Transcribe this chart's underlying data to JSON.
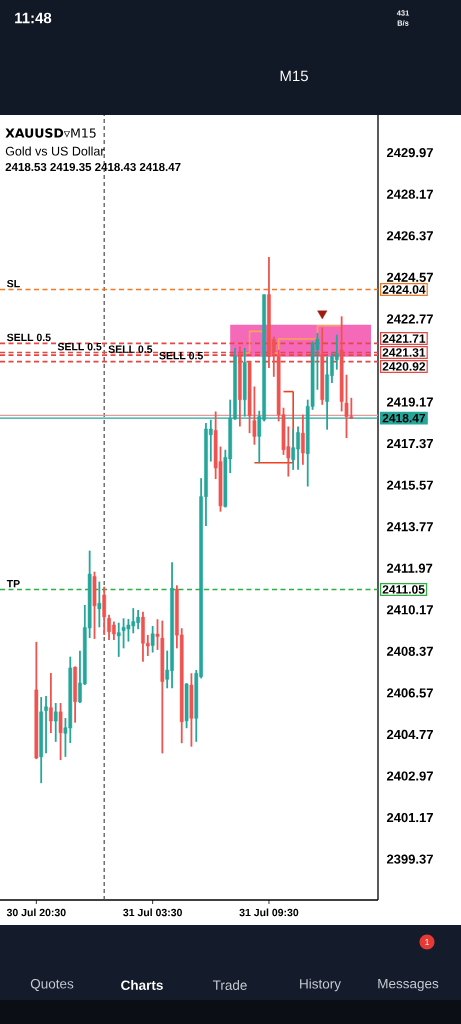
{
  "chart_data": {
    "type": "candlestick",
    "title": "**XAUUSD**▿M15",
    "subtitle": "Gold vs US Dollar",
    "annotations": [
      "2418.53 2419.35 2418.43 2418.47",
      {
        "text": "SL",
        "y": 2424.04
      },
      {
        "text": "SELL 0.5",
        "y": 2421.71
      },
      {
        "text": "SELL 0.5",
        "y": 2421.31
      },
      {
        "text": "SELL 0.5",
        "y": 2421.2
      },
      {
        "text": "SELL 0.5",
        "y": 2420.92
      },
      {
        "text": "TP",
        "y": 2411.05
      },
      "M15",
      "Quotes",
      "Charts",
      "Trade",
      "History",
      "Messages",
      "1",
      "11:48",
      "431",
      "B/s"
    ],
    "categories": [
      "30 Jul 20:30",
      null,
      null,
      null,
      null,
      null,
      null,
      null,
      null,
      null,
      null,
      null,
      null,
      null,
      null,
      null,
      null,
      null,
      null,
      null,
      null,
      null,
      null,
      null,
      "31 Jul 03:30",
      null,
      null,
      null,
      null,
      null,
      null,
      null,
      null,
      null,
      null,
      null,
      null,
      null,
      null,
      null,
      null,
      null,
      null,
      null,
      null,
      null,
      null,
      null,
      "31 Jul 09:30",
      null,
      null,
      null,
      null,
      null,
      null,
      null,
      null,
      null,
      null,
      null,
      null,
      null,
      null,
      null,
      null,
      null,
      null,
      null,
      null,
      null
    ],
    "ohlc": [
      [
        2406.7,
        2408.78,
        2403.7,
        2403.75
      ],
      [
        2403.8,
        2406.39,
        2402.66,
        2405.75
      ],
      [
        2405.8,
        2406.44,
        2403.96,
        2405.97
      ],
      [
        2405.93,
        2407.43,
        2404.83,
        2405.35
      ],
      [
        2405.35,
        2406.13,
        2404.45,
        2405.75
      ],
      [
        2405.75,
        2406.13,
        2403.66,
        2404.84
      ],
      [
        2404.82,
        2405.48,
        2403.8,
        2405.06
      ],
      [
        2405.05,
        2408.14,
        2404.4,
        2407.65
      ],
      [
        2407.69,
        2407.71,
        2405.28,
        2406.19
      ],
      [
        2406.18,
        2408.4,
        2406.13,
        2407.0
      ],
      [
        2406.96,
        2410.38,
        2406.91,
        2409.4
      ],
      [
        2409.38,
        2412.73,
        2408.95,
        2411.72
      ],
      [
        2411.61,
        2411.82,
        2408.91,
        2410.34
      ],
      [
        2410.21,
        2411.39,
        2409.41,
        2410.45
      ],
      [
        2410.81,
        2411.17,
        2409.08,
        2409.86
      ],
      [
        2409.8,
        2409.95,
        2408.86,
        2409.22
      ],
      [
        2409.51,
        2409.66,
        2408.86,
        2409.12
      ],
      [
        2409.04,
        2409.61,
        2408.13,
        2409.18
      ],
      [
        2409.27,
        2409.8,
        2408.5,
        2409.41
      ],
      [
        2409.34,
        2409.77,
        2408.79,
        2409.51
      ],
      [
        2409.47,
        2410.24,
        2409.15,
        2409.66
      ],
      [
        2409.61,
        2410.16,
        2409.33,
        2409.85
      ],
      [
        2409.85,
        2410.09,
        2407.92,
        2408.72
      ],
      [
        2408.72,
        2409.08,
        2408.17,
        2408.6
      ],
      [
        2408.62,
        2409.47,
        2408.32,
        2409.13
      ],
      [
        2409.12,
        2409.76,
        2408.43,
        2409.01
      ],
      [
        2408.94,
        2409.7,
        2403.95,
        2407.06
      ],
      [
        2407.16,
        2408.4,
        2406.77,
        2407.56
      ],
      [
        2407.53,
        2412.23,
        2406.77,
        2411.1
      ],
      [
        2411.07,
        2411.23,
        2408.5,
        2409.07
      ],
      [
        2409.08,
        2409.37,
        2404.39,
        2405.32
      ],
      [
        2405.36,
        2406.99,
        2405.04,
        2406.96
      ],
      [
        2406.91,
        2407.42,
        2404.24,
        2405.47
      ],
      [
        2405.47,
        2407.56,
        2404.45,
        2407.42
      ],
      [
        2407.27,
        2415.87,
        2407.2,
        2415.07
      ],
      [
        2415.07,
        2418.26,
        2413.8,
        2418.0
      ],
      [
        2417.75,
        2418.4,
        2416.59,
        2418.0
      ],
      [
        2417.94,
        2418.76,
        2415.83,
        2416.31
      ],
      [
        2416.59,
        2417.24,
        2414.42,
        2414.67
      ],
      [
        2414.64,
        2417.1,
        2414.6,
        2416.77
      ],
      [
        2416.7,
        2419.27,
        2416.09,
        2418.47
      ],
      [
        2418.43,
        2421.51,
        2418.4,
        2421.17
      ],
      [
        2421.17,
        2421.58,
        2418.11,
        2419.27
      ],
      [
        2419.27,
        2421.51,
        2418.54,
        2420.88
      ],
      [
        2420.88,
        2420.93,
        2417.82,
        2418.57
      ],
      [
        2418.36,
        2419.84,
        2417.32,
        2417.68
      ],
      [
        2417.68,
        2418.79,
        2416.52,
        2418.54
      ],
      [
        2418.4,
        2423.82,
        2418.33,
        2423.82
      ],
      [
        2423.82,
        2425.45,
        2420.64,
        2421.14
      ],
      [
        2421.87,
        2422.0,
        2420.26,
        2421.35
      ],
      [
        2421.14,
        2421.43,
        2418.33,
        2418.62
      ],
      [
        2418.62,
        2418.92,
        2416.88,
        2417.1
      ],
      [
        2417.24,
        2418.11,
        2415.94,
        2416.74
      ],
      [
        2416.67,
        2418.0,
        2416.23,
        2417.19
      ],
      [
        2417.13,
        2418.11,
        2416.23,
        2417.85
      ],
      [
        2417.82,
        2418.62,
        2416.45,
        2416.96
      ],
      [
        2416.93,
        2419.27,
        2415.51,
        2418.98
      ],
      [
        2418.98,
        2421.79,
        2418.83,
        2421.72
      ],
      [
        2421.43,
        2422.16,
        2419.7,
        2421.9
      ],
      [
        2421.22,
        2422.39,
        2419.05,
        2419.27
      ],
      [
        2419.19,
        2421.14,
        2417.97,
        2420.35
      ],
      [
        2420.31,
        2421.29,
        2419.99,
        2421.14
      ],
      [
        2421.0,
        2422.08,
        2420.57,
        2421.26
      ],
      [
        2421.43,
        2422.88,
        2418.76,
        2419.19
      ],
      [
        2419.12,
        2420.35,
        2417.61,
        2418.54
      ],
      [
        2418.53,
        2419.35,
        2418.43,
        2418.47
      ],
      null,
      null,
      null,
      null
    ],
    "colors": [
      "#ef5350",
      "#26a69a",
      "#26a69a",
      "#ef5350",
      "#26a69a",
      "#ef5350",
      "#26a69a",
      "#26a69a",
      "#ef5350",
      "#26a69a",
      "#26a69a",
      "#26a69a",
      "#ef5350",
      "#26a69a",
      "#ef5350",
      "#ef5350",
      "#ef5350",
      "#26a69a",
      "#26a69a",
      "#26a69a",
      "#26a69a",
      "#26a69a",
      "#ef5350",
      "#ef5350",
      "#26a69a",
      "#ef5350",
      "#ef5350",
      "#26a69a",
      "#26a69a",
      "#ef5350",
      "#ef5350",
      "#26a69a",
      "#ef5350",
      "#26a69a",
      "#26a69a",
      "#26a69a",
      "#26a69a",
      "#ef5350",
      "#ef5350",
      "#26a69a",
      "#26a69a",
      "#26a69a",
      "#ef5350",
      "#26a69a",
      "#ef5350",
      "#ef5350",
      "#26a69a",
      "#26a69a",
      "#ef5350",
      "#ef5350",
      "#ef5350",
      "#ef5350",
      "#ef5350",
      "#26a69a",
      "#26a69a",
      "#ef5350",
      "#26a69a",
      "#26a69a",
      "#26a69a",
      "#ef5350",
      "#26a69a",
      "#26a69a",
      "#26a69a",
      "#ef5350",
      "#ef5350",
      "#ef5350",
      null,
      null,
      null,
      null
    ],
    "series": [
      {
        "type": "step",
        "color": "#f5a55a",
        "values": [
          null,
          null,
          null,
          null,
          null,
          null,
          null,
          null,
          null,
          null,
          null,
          null,
          null,
          null,
          null,
          null,
          null,
          null,
          null,
          null,
          null,
          null,
          null,
          null,
          null,
          null,
          null,
          null,
          null,
          null,
          null,
          null,
          null,
          null,
          null,
          null,
          null,
          null,
          null,
          null,
          null,
          null,
          null,
          2421.29,
          2422.23,
          2422.23,
          2422.23,
          2422.23,
          null,
          2421.29,
          2421.9,
          2421.9,
          2421.9,
          2421.9,
          2421.9,
          2421.9,
          2421.9,
          2421.9,
          2422.47,
          2422.47,
          2422.47,
          2422.47,
          2422.47,
          2422.47,
          null,
          null,
          null,
          null,
          null,
          null
        ]
      },
      {
        "type": "step",
        "color": "#f0401e",
        "values": [
          null,
          null,
          null,
          null,
          null,
          null,
          null,
          null,
          null,
          null,
          null,
          null,
          null,
          null,
          null,
          null,
          null,
          null,
          null,
          null,
          null,
          null,
          null,
          null,
          null,
          null,
          null,
          null,
          null,
          null,
          null,
          null,
          null,
          null,
          null,
          null,
          null,
          null,
          null,
          null,
          null,
          null,
          null,
          null,
          null,
          2416.54,
          2416.54,
          2416.54,
          2416.54,
          2416.54,
          2416.54,
          2416.54,
          2416.54,
          2419.62,
          null,
          null,
          null,
          null,
          null,
          null,
          null,
          null,
          null,
          null,
          null,
          null,
          null,
          null,
          null,
          null
        ]
      },
      {
        "type": "line",
        "color": "#f0401e",
        "values": [
          null,
          null,
          null,
          null,
          null,
          null,
          null,
          null,
          null,
          null,
          null,
          null,
          null,
          null,
          null,
          null,
          null,
          null,
          null,
          null,
          null,
          null,
          null,
          null,
          null,
          null,
          null,
          null,
          null,
          null,
          null,
          null,
          null,
          null,
          null,
          null,
          null,
          null,
          null,
          null,
          null,
          null,
          null,
          null,
          null,
          null,
          null,
          null,
          null,
          null,
          null,
          2419.62,
          2419.62,
          2419.62,
          null,
          null,
          null,
          null,
          null,
          null,
          null,
          null,
          null,
          null,
          null,
          null,
          null,
          null,
          null,
          null
        ]
      },
      {
        "type": "scatter",
        "color": "#9e1b0e",
        "marker": "triangle",
        "values": [
          null,
          null,
          null,
          null,
          null,
          null,
          null,
          null,
          null,
          null,
          null,
          null,
          null,
          null,
          null,
          null,
          null,
          null,
          null,
          null,
          null,
          null,
          null,
          null,
          null,
          null,
          null,
          null,
          null,
          null,
          null,
          null,
          null,
          null,
          null,
          null,
          null,
          null,
          null,
          null,
          null,
          null,
          null,
          null,
          null,
          null,
          null,
          null,
          null,
          null,
          null,
          null,
          null,
          null,
          null,
          null,
          null,
          null,
          null,
          2423.0,
          null,
          null,
          null,
          null,
          null,
          null,
          null,
          null,
          null,
          null
        ]
      }
    ],
    "bands": [
      {
        "axis": "y",
        "from": 2421.13,
        "to": 2422.52,
        "color": "#f46ab9"
      }
    ],
    "ref_lines": [
      {
        "axis": "y",
        "value": 2424.04,
        "label": "2424.04",
        "color": "#f07820",
        "line_style": "dashed"
      },
      {
        "axis": "y",
        "value": 2421.71,
        "label": "2421.71",
        "color": "#e84545",
        "line_style": "dashed"
      },
      {
        "axis": "y",
        "value": 2421.31,
        "label": "2421.31",
        "color": "#e84545",
        "line_style": "dashed"
      },
      {
        "axis": "y",
        "value": 2421.2,
        "color": "#e84545",
        "line_style": "dashed"
      },
      {
        "axis": "y",
        "value": 2420.92,
        "label": "2420.92",
        "color": "#e84545",
        "line_style": "dashed"
      },
      {
        "axis": "y",
        "value": 2418.59,
        "color": "#e39a9a",
        "line_style": "solid"
      },
      {
        "axis": "y",
        "value": 2418.47,
        "label": "2418.47",
        "color": "#26a69a",
        "line_style": "solid"
      },
      {
        "axis": "y",
        "value": 2411.05,
        "label": "2411.05",
        "color": "#2bb041",
        "line_style": "dashed"
      }
    ],
    "ylim": [
      2397.6,
      2431.6
    ],
    "yticks": [
      2399.37,
      2401.17,
      2402.97,
      2404.77,
      2406.57,
      2408.37,
      2410.17,
      2411.97,
      2413.77,
      2415.57,
      2417.37,
      2419.17,
      2422.77,
      2424.57,
      2426.37,
      2428.17,
      2429.97
    ]
  }
}
